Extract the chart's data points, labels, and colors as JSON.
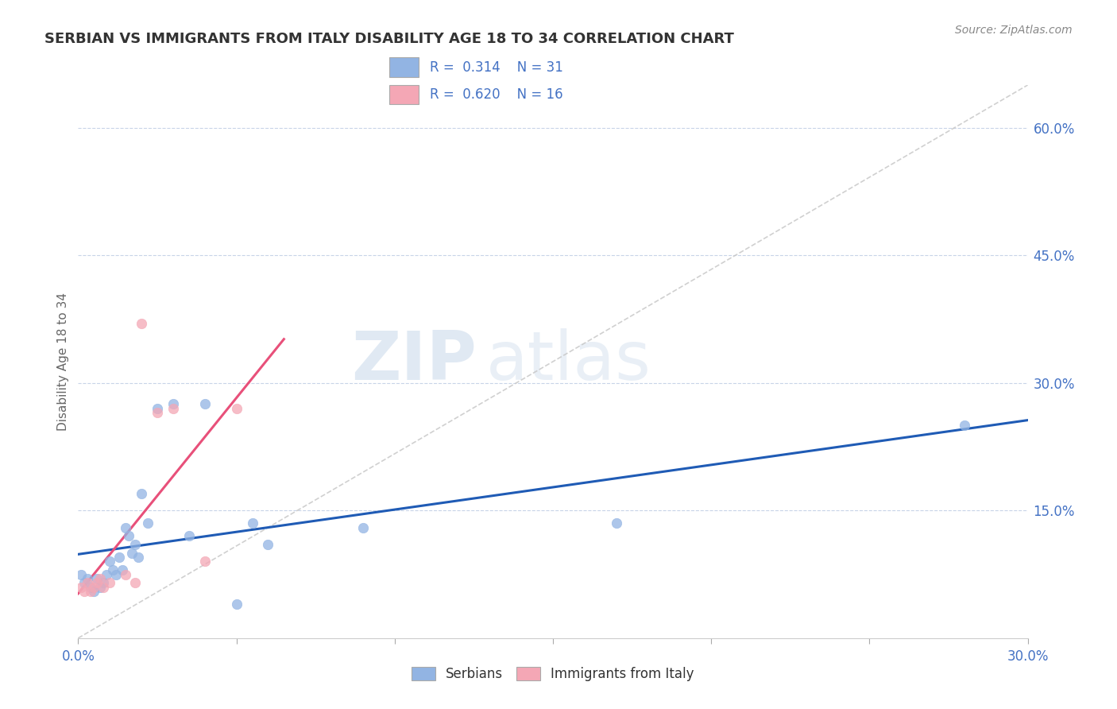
{
  "title": "SERBIAN VS IMMIGRANTS FROM ITALY DISABILITY AGE 18 TO 34 CORRELATION CHART",
  "source": "Source: ZipAtlas.com",
  "ylabel": "Disability Age 18 to 34",
  "xlim": [
    0.0,
    0.3
  ],
  "ylim": [
    0.0,
    0.65
  ],
  "xticks": [
    0.0,
    0.05,
    0.1,
    0.15,
    0.2,
    0.25,
    0.3
  ],
  "ytick_labels_right": [
    "15.0%",
    "30.0%",
    "45.0%",
    "60.0%"
  ],
  "ytick_positions_right": [
    0.15,
    0.3,
    0.45,
    0.6
  ],
  "serbians_x": [
    0.001,
    0.002,
    0.003,
    0.004,
    0.005,
    0.006,
    0.007,
    0.008,
    0.009,
    0.01,
    0.011,
    0.012,
    0.013,
    0.014,
    0.015,
    0.016,
    0.017,
    0.018,
    0.019,
    0.02,
    0.022,
    0.025,
    0.03,
    0.035,
    0.04,
    0.05,
    0.055,
    0.06,
    0.09,
    0.17,
    0.28
  ],
  "serbians_y": [
    0.075,
    0.065,
    0.07,
    0.06,
    0.055,
    0.07,
    0.06,
    0.065,
    0.075,
    0.09,
    0.08,
    0.075,
    0.095,
    0.08,
    0.13,
    0.12,
    0.1,
    0.11,
    0.095,
    0.17,
    0.135,
    0.27,
    0.275,
    0.12,
    0.275,
    0.04,
    0.135,
    0.11,
    0.13,
    0.135,
    0.25
  ],
  "italy_x": [
    0.001,
    0.002,
    0.003,
    0.004,
    0.005,
    0.006,
    0.007,
    0.008,
    0.01,
    0.015,
    0.018,
    0.02,
    0.025,
    0.03,
    0.04,
    0.05
  ],
  "italy_y": [
    0.06,
    0.055,
    0.065,
    0.055,
    0.06,
    0.065,
    0.07,
    0.06,
    0.065,
    0.075,
    0.065,
    0.37,
    0.265,
    0.27,
    0.09,
    0.27
  ],
  "serbian_color": "#92b4e3",
  "italy_color": "#f4a7b5",
  "serbian_line_color": "#1f5bb5",
  "italy_line_color": "#e8507a",
  "diagonal_color": "#c8c8c8",
  "r_serbian": 0.314,
  "n_serbian": 31,
  "r_italy": 0.62,
  "n_italy": 16,
  "watermark_zip": "ZIP",
  "watermark_atlas": "atlas",
  "background_color": "#ffffff",
  "grid_color": "#c8d4e8",
  "title_color": "#333333",
  "axis_label_color": "#666666",
  "tick_color": "#4472c4"
}
